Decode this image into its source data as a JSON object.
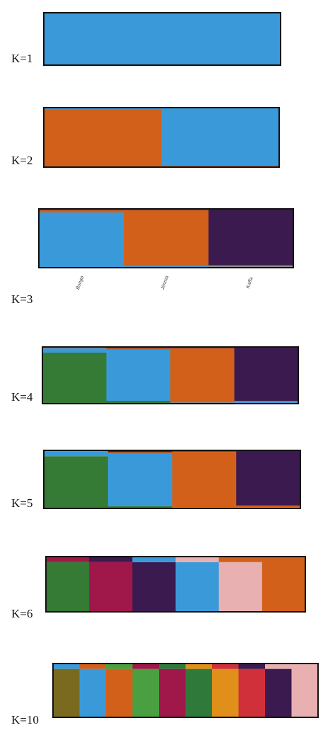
{
  "chart_data": [
    {
      "type": "structure",
      "title": "K=1",
      "categories": [
        null
      ],
      "ylim": [
        0,
        1
      ],
      "series": [
        {
          "color": "#3a9ad9",
          "values": [
            1
          ]
        }
      ]
    },
    {
      "type": "structure",
      "title": "K=2",
      "categories": [
        null,
        null
      ],
      "ylim": [
        0,
        1
      ],
      "series": [
        {
          "color": "#d2601a",
          "values": [
            0.97,
            0.03
          ]
        },
        {
          "color": "#3a9ad9",
          "values": [
            0.03,
            0.97
          ]
        }
      ]
    },
    {
      "type": "structure",
      "title": "K=3",
      "categories": [
        "Bonga",
        "Jimma",
        "Kaffa"
      ],
      "ylim": [
        0,
        1
      ],
      "series": [
        {
          "color": "#3a9ad9",
          "values": [
            0.94,
            0.03,
            0.02
          ]
        },
        {
          "color": "#d2601a",
          "values": [
            0.04,
            0.95,
            0.02
          ]
        },
        {
          "color": "#3b1a4f",
          "values": [
            0.02,
            0.02,
            0.96
          ]
        }
      ]
    },
    {
      "type": "structure",
      "title": "K=4",
      "categories": [
        null,
        null,
        null,
        null
      ],
      "ylim": [
        0,
        1
      ],
      "series": [
        {
          "color": "#357a35",
          "values": [
            0.9,
            0.05,
            0,
            0
          ]
        },
        {
          "color": "#3a9ad9",
          "values": [
            0.08,
            0.9,
            0.02,
            0.03
          ]
        },
        {
          "color": "#d2601a",
          "values": [
            0.02,
            0.03,
            0.96,
            0.02
          ]
        },
        {
          "color": "#3b1a4f",
          "values": [
            0,
            0.02,
            0.02,
            0.95
          ]
        }
      ]
    },
    {
      "type": "structure",
      "title": "K=5",
      "categories": [
        null,
        null,
        null,
        null
      ],
      "ylim": [
        0,
        1
      ],
      "series": [
        {
          "color": "#357a35",
          "values": [
            0.9,
            0.04,
            0,
            0
          ]
        },
        {
          "color": "#3a9ad9",
          "values": [
            0.08,
            0.9,
            0.02,
            0.02
          ]
        },
        {
          "color": "#d2601a",
          "values": [
            0.02,
            0.03,
            0.96,
            0.03
          ]
        },
        {
          "color": "#3b1a4f",
          "values": [
            0,
            0.02,
            0.02,
            0.95
          ]
        },
        {
          "color": "#1f2a5a",
          "values": [
            0,
            0.01,
            0,
            0
          ]
        }
      ]
    },
    {
      "type": "structure",
      "title": "K=6",
      "categories": [
        null,
        null,
        null,
        null,
        null,
        null
      ],
      "ylim": [
        0,
        1
      ],
      "series": [
        {
          "color": "#357a35",
          "values": [
            0.9,
            0,
            0,
            0,
            0,
            0
          ]
        },
        {
          "color": "#a0174a",
          "values": [
            0.1,
            0.9,
            0,
            0,
            0,
            0
          ]
        },
        {
          "color": "#3b1a4f",
          "values": [
            0,
            0.1,
            0.9,
            0,
            0,
            0
          ]
        },
        {
          "color": "#3a9ad9",
          "values": [
            0,
            0,
            0.1,
            0.9,
            0,
            0
          ]
        },
        {
          "color": "#e8b0b0",
          "values": [
            0,
            0,
            0,
            0.1,
            0.9,
            0
          ]
        },
        {
          "color": "#d2601a",
          "values": [
            0,
            0,
            0,
            0,
            0.1,
            1
          ]
        }
      ]
    },
    {
      "type": "structure",
      "title": "K=10",
      "categories": [
        null,
        null,
        null,
        null,
        null,
        null,
        null,
        null,
        null,
        null
      ],
      "ylim": [
        0,
        1
      ],
      "series": [
        {
          "color": "#7a6a20",
          "values": [
            0.9,
            0,
            0,
            0,
            0,
            0,
            0,
            0,
            0,
            0
          ]
        },
        {
          "color": "#3a9ad9",
          "values": [
            0.1,
            0.9,
            0,
            0,
            0,
            0,
            0,
            0,
            0,
            0
          ]
        },
        {
          "color": "#d2601a",
          "values": [
            0,
            0.1,
            0.9,
            0,
            0,
            0,
            0,
            0,
            0,
            0
          ]
        },
        {
          "color": "#4aa040",
          "values": [
            0,
            0,
            0.1,
            0.9,
            0,
            0,
            0,
            0,
            0,
            0
          ]
        },
        {
          "color": "#a0174a",
          "values": [
            0,
            0,
            0,
            0.1,
            0.9,
            0,
            0,
            0,
            0,
            0
          ]
        },
        {
          "color": "#2f7a3a",
          "values": [
            0,
            0,
            0,
            0,
            0.1,
            0.9,
            0,
            0,
            0,
            0
          ]
        },
        {
          "color": "#e0901a",
          "values": [
            0,
            0,
            0,
            0,
            0,
            0.1,
            0.9,
            0,
            0,
            0
          ]
        },
        {
          "color": "#d0303a",
          "values": [
            0,
            0,
            0,
            0,
            0,
            0,
            0.1,
            0.9,
            0,
            0
          ]
        },
        {
          "color": "#3b1a4f",
          "values": [
            0,
            0,
            0,
            0,
            0,
            0,
            0,
            0.1,
            0.9,
            0
          ]
        },
        {
          "color": "#e8b0b0",
          "values": [
            0,
            0,
            0,
            0,
            0,
            0,
            0,
            0,
            0.1,
            1
          ]
        }
      ]
    }
  ]
}
